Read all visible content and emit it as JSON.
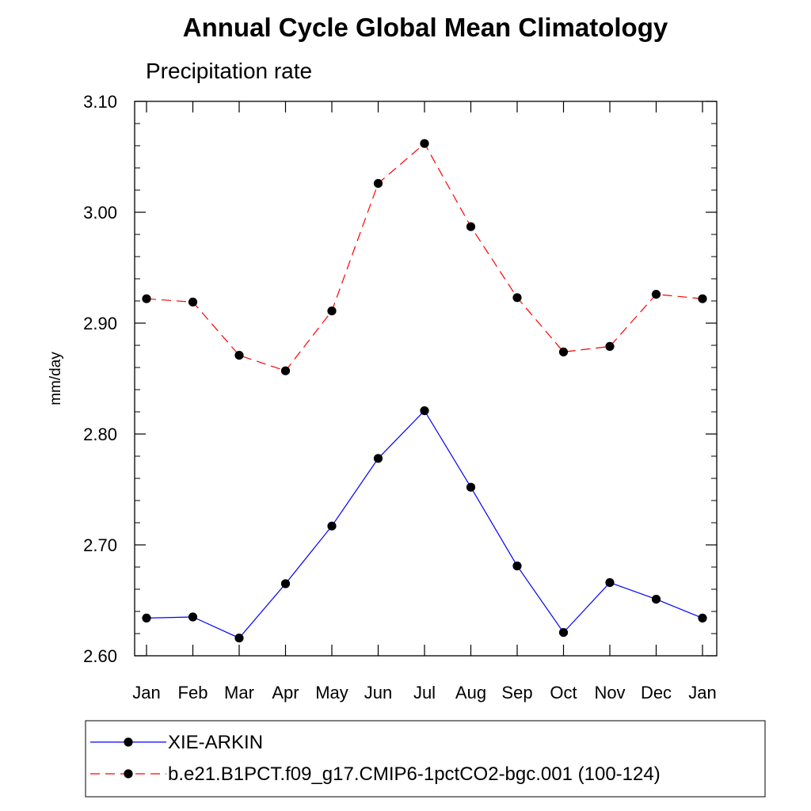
{
  "chart_data": {
    "type": "line",
    "title": "Annual Cycle Global Mean Climatology",
    "subtitle": "Precipitation rate",
    "xlabel": "",
    "ylabel": "mm/day",
    "ylim": [
      2.6,
      3.1
    ],
    "yticks": [
      "2.60",
      "2.70",
      "2.80",
      "2.90",
      "3.00",
      "3.10"
    ],
    "categories": [
      "Jan",
      "Feb",
      "Mar",
      "Apr",
      "May",
      "Jun",
      "Jul",
      "Aug",
      "Sep",
      "Oct",
      "Nov",
      "Dec",
      "Jan"
    ],
    "grid": false,
    "legend_position": "bottom",
    "series": [
      {
        "name": "XIE-ARKIN",
        "color": "#0000ff",
        "line_style": "solid",
        "marker": "filled-circle",
        "values": [
          2.634,
          2.635,
          2.616,
          2.665,
          2.717,
          2.778,
          2.821,
          2.752,
          2.681,
          2.621,
          2.666,
          2.651,
          2.634
        ]
      },
      {
        "name": "b.e21.B1PCT.f09_g17.CMIP6-1pctCO2-bgc.001 (100-124)",
        "color": "#ff0000",
        "line_style": "dashed",
        "marker": "filled-circle",
        "values": [
          2.922,
          2.919,
          2.871,
          2.857,
          2.911,
          3.026,
          3.062,
          2.987,
          2.923,
          2.874,
          2.879,
          2.926,
          2.922
        ]
      }
    ]
  }
}
